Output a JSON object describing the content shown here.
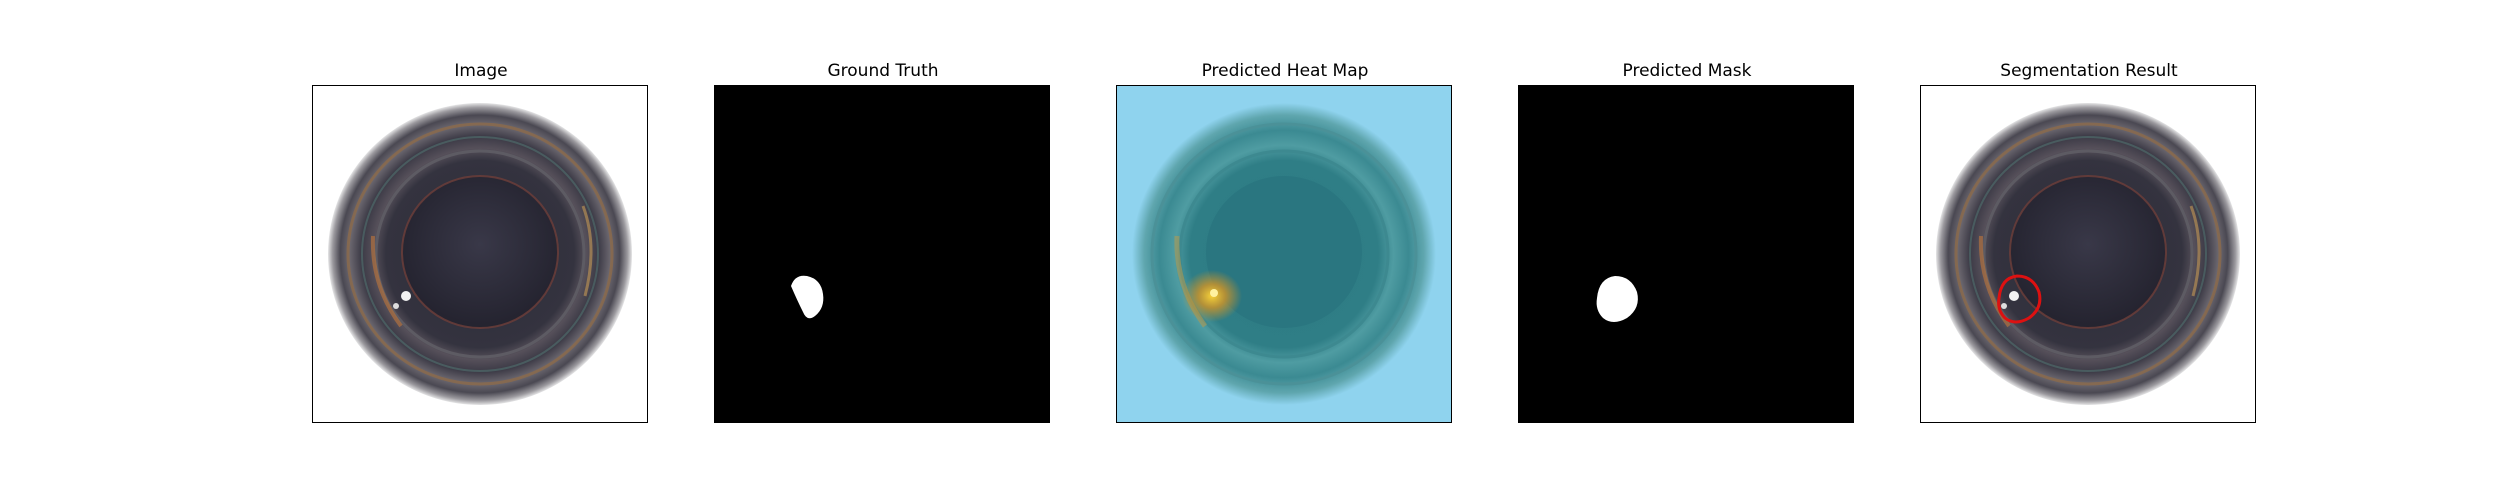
{
  "panels": [
    {
      "title": "Image",
      "kind": "image"
    },
    {
      "title": "Ground Truth",
      "kind": "mask-gt"
    },
    {
      "title": "Predicted Heat Map",
      "kind": "heatmap"
    },
    {
      "title": "Predicted Mask",
      "kind": "mask-pred"
    },
    {
      "title": "Segmentation Result",
      "kind": "overlay"
    }
  ],
  "colors": {
    "frame": "#000000",
    "mask_background": "#000000",
    "mask_foreground": "#ffffff",
    "heatmap_background": "#8fd3ee",
    "segmentation_contour": "#dd1111"
  }
}
